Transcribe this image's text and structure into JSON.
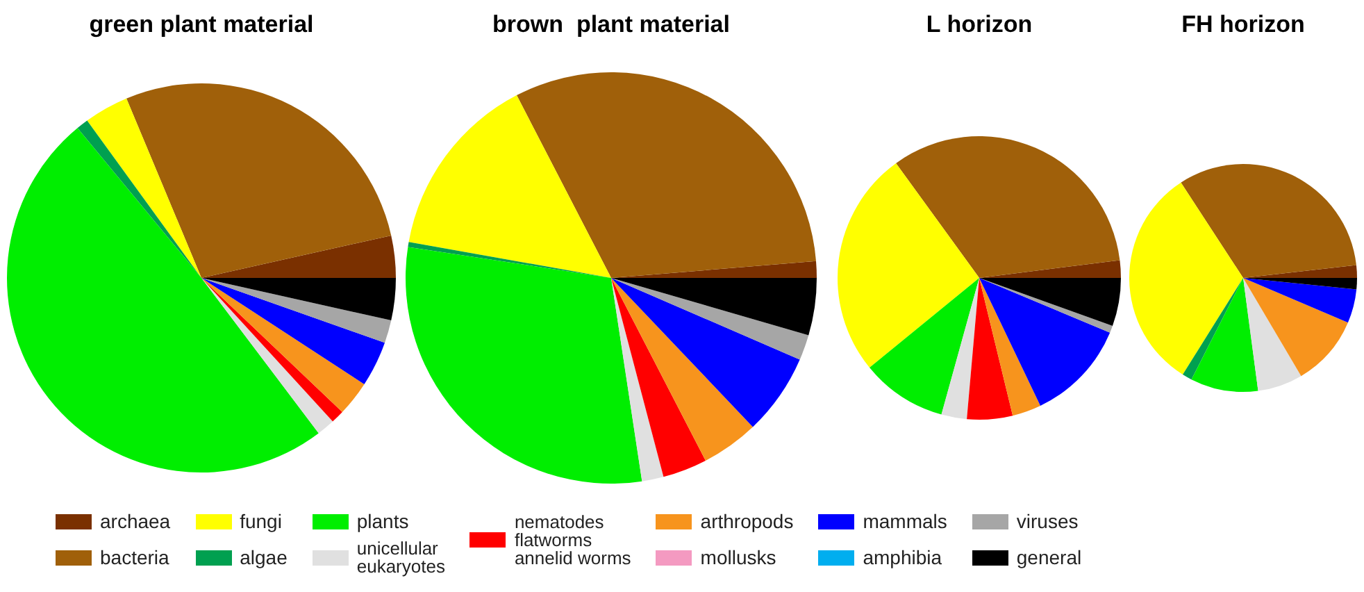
{
  "chart_data": [
    {
      "type": "pie",
      "title": "green plant material",
      "legend": "bottom",
      "categories": [
        "archaea",
        "bacteria",
        "fungi",
        "algae",
        "plants",
        "unicellular\neukaryotes",
        "nematodes\nflatworms\nannelid worms",
        "arthropods",
        "mollusks",
        "mammals",
        "amphibia",
        "viruses",
        "general"
      ],
      "colors": [
        "#7a3000",
        "#a0600a",
        "#ffff00",
        "#00a050",
        "#00ee00",
        "#e0e0e0",
        "#ff0000",
        "#f7941d",
        "#f49ac1",
        "#0000ff",
        "#00aeef",
        "#a6a6a6",
        "#000000"
      ],
      "values": [
        3.5,
        27.8,
        3.7,
        1,
        49.3,
        1.5,
        1.1,
        2.9,
        0,
        3.8,
        0,
        1.9,
        3.5
      ]
    },
    {
      "type": "pie",
      "title": "brown  plant material",
      "categories": [
        null,
        null,
        null,
        null,
        null,
        null,
        null,
        null,
        null,
        null,
        null,
        null,
        null
      ],
      "colors": [
        "#7a3000",
        "#a0600a",
        "#ffff00",
        "#00a050",
        "#00ee00",
        "#e0e0e0",
        "#ff0000",
        "#f7941d",
        "#f49ac1",
        "#0000ff",
        "#00aeef",
        "#a6a6a6",
        "#000000"
      ],
      "values": [
        1.3,
        31.3,
        14.6,
        0.4,
        29.8,
        1.7,
        3.5,
        4.5,
        0,
        6.4,
        0,
        2.0,
        4.5
      ]
    },
    {
      "type": "pie",
      "title": "L horizon",
      "categories": [
        null,
        null,
        null,
        null,
        null,
        null,
        null,
        null,
        null,
        null,
        null,
        null,
        null
      ],
      "colors": [
        "#7a3000",
        "#a0600a",
        "#ffff00",
        "#00a050",
        "#00ee00",
        "#e0e0e0",
        "#ff0000",
        "#f7941d",
        "#f49ac1",
        "#0000ff",
        "#00aeef",
        "#a6a6a6",
        "#000000"
      ],
      "values": [
        2,
        33,
        25.9,
        0,
        9.8,
        2.9,
        5.2,
        3.3,
        0,
        11.6,
        0,
        0.8,
        5.5
      ]
    },
    {
      "type": "pie",
      "title": "FH horizon",
      "categories": [
        null,
        null,
        null,
        null,
        null,
        null,
        null,
        null,
        null,
        null,
        null,
        null,
        null
      ],
      "colors": [
        "#7a3000",
        "#a0600a",
        "#ffff00",
        "#00a050",
        "#00ee00",
        "#e0e0e0",
        "#ff0000",
        "#f7941d",
        "#f49ac1",
        "#0000ff",
        "#00aeef",
        "#a6a6a6",
        "#000000"
      ],
      "values": [
        1.8,
        32.4,
        31.9,
        1.4,
        9.6,
        6.4,
        0,
        10.1,
        0,
        4.8,
        0,
        0,
        1.6
      ]
    }
  ]
}
